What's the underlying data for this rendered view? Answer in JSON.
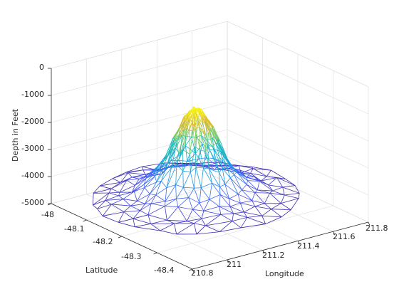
{
  "chart_data": {
    "type": "mesh",
    "title": "",
    "xlabel": "Longitude",
    "ylabel": "Latitude",
    "zlabel": "Depth in Feet",
    "grid": true,
    "colormap": "parula",
    "xlim": [
      210.8,
      211.8
    ],
    "ylim": [
      -48.4,
      -48.0
    ],
    "zlim": [
      -5000,
      0
    ],
    "xticks": [
      "210.8",
      "211",
      "211.2",
      "211.4",
      "211.6",
      "211.8"
    ],
    "yticks": [
      "-48",
      "-48.1",
      "-48.2",
      "-48.3",
      "-48.4"
    ],
    "zticks": [
      "0",
      "-1000",
      "-2000",
      "-3000",
      "-4000",
      "-5000"
    ],
    "surface": {
      "description": "triangulated seamount depth surface",
      "base_depth": -4300,
      "peak_depth": -1000,
      "peak_lon": 211.22,
      "peak_lat": -48.2,
      "footprint_radius_lon": 0.48,
      "footprint_radius_lat": 0.17
    }
  }
}
